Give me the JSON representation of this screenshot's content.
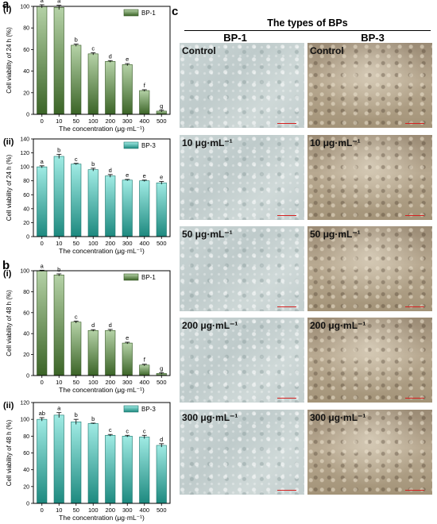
{
  "panel_labels": {
    "a": "a",
    "b": "b",
    "c": "c"
  },
  "chart_data": [
    {
      "id": "a_i",
      "sublabel": "(i)",
      "type": "bar",
      "legend": "BP-1",
      "series_color": "#5b9a3c",
      "categories": [
        "0",
        "10",
        "50",
        "100",
        "200",
        "300",
        "400",
        "500"
      ],
      "values": [
        100,
        99,
        64,
        56,
        49,
        46,
        22,
        3
      ],
      "errors": [
        1.5,
        2,
        1,
        1,
        0.8,
        1,
        0.8,
        0.8
      ],
      "letters": [
        "a",
        "a",
        "b",
        "c",
        "d",
        "e",
        "f",
        "g"
      ],
      "ylabel": "Cell viability of 24 h (%)",
      "xlabel": "The concentration (μg·mL⁻¹)",
      "ylim": [
        0,
        100
      ],
      "yticks": [
        0,
        20,
        40,
        60,
        80,
        100
      ]
    },
    {
      "id": "a_ii",
      "sublabel": "(ii)",
      "type": "bar",
      "legend": "BP-3",
      "series_color": "#2cd3c3",
      "categories": [
        "0",
        "10",
        "50",
        "100",
        "200",
        "300",
        "400",
        "500"
      ],
      "values": [
        100,
        115,
        104,
        96,
        87,
        81,
        80,
        77
      ],
      "errors": [
        1.5,
        3,
        1,
        2,
        2,
        1,
        1,
        2
      ],
      "letters": [
        "a",
        "b",
        "c",
        "b",
        "d",
        "e",
        "e",
        "e"
      ],
      "ylabel": "Cell viability of 24 h (%)",
      "xlabel": "The concentration (μg·mL⁻¹)",
      "ylim": [
        0,
        140
      ],
      "yticks": [
        0,
        20,
        40,
        60,
        80,
        100,
        120,
        140
      ]
    },
    {
      "id": "b_i",
      "sublabel": "(i)",
      "type": "bar",
      "legend": "BP-1",
      "series_color": "#5b9a3c",
      "categories": [
        "0",
        "10",
        "50",
        "100",
        "200",
        "300",
        "400",
        "500"
      ],
      "values": [
        100,
        96,
        51,
        43,
        43,
        31,
        10,
        2
      ],
      "errors": [
        0.5,
        1,
        1,
        0.8,
        1,
        0.8,
        0.8,
        0.8
      ],
      "letters": [
        "a",
        "b",
        "c",
        "d",
        "d",
        "e",
        "f",
        "g"
      ],
      "ylabel": "Cell viability of 48 h (%)",
      "xlabel": "The concentration (μg·mL⁻¹)",
      "ylim": [
        0,
        100
      ],
      "yticks": [
        0,
        20,
        40,
        60,
        80,
        100
      ]
    },
    {
      "id": "b_ii",
      "sublabel": "(ii)",
      "type": "bar",
      "legend": "BP-3",
      "series_color": "#2cd3c3",
      "categories": [
        "0",
        "10",
        "50",
        "100",
        "200",
        "300",
        "400",
        "500"
      ],
      "values": [
        100,
        105,
        97,
        95,
        81,
        80,
        79,
        69
      ],
      "errors": [
        2,
        3,
        3,
        0.5,
        1,
        1,
        2,
        2
      ],
      "letters": [
        "ab",
        "a",
        "b",
        "b",
        "c",
        "c",
        "c",
        "d"
      ],
      "ylabel": "Cell viability of 48 h (%)",
      "xlabel": "The concentration (μg·mL⁻¹)",
      "ylim": [
        0,
        120
      ],
      "yticks": [
        0,
        20,
        40,
        60,
        80,
        100,
        120
      ]
    }
  ],
  "micrographs": {
    "title": "The types of BPs",
    "columns": [
      "BP-1",
      "BP-3"
    ],
    "rows": [
      {
        "label": "Control"
      },
      {
        "label": "10 μg·mL⁻¹"
      },
      {
        "label": "50 μg·mL⁻¹"
      },
      {
        "label": "200 μg·mL⁻¹"
      },
      {
        "label": "300 μg·mL⁻¹"
      }
    ]
  }
}
